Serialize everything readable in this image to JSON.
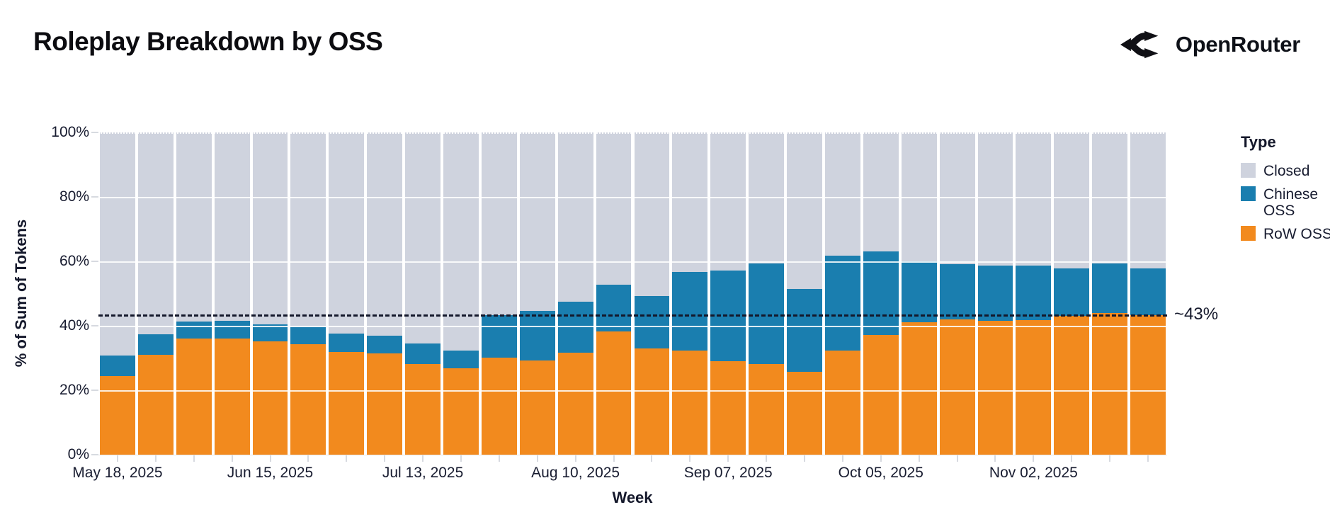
{
  "header": {
    "title": "Roleplay Breakdown by OSS",
    "brand": {
      "name": "OpenRouter",
      "logo_icon": "openrouter-logo-icon"
    }
  },
  "chart_data": {
    "type": "bar",
    "stacked": true,
    "normalized_percent": true,
    "title": "Roleplay Breakdown by OSS",
    "xlabel": "Week",
    "ylabel": "% of Sum of Tokens",
    "ylim": [
      0,
      100
    ],
    "ytick_values": [
      0,
      20,
      40,
      60,
      80,
      100
    ],
    "ytick_labels": [
      "0%",
      "20%",
      "40%",
      "60%",
      "80%",
      "100%"
    ],
    "xtick_labels_shown": [
      "May 18, 2025",
      "Jun 15, 2025",
      "Jul 13, 2025",
      "Aug 10, 2025",
      "Sep 07, 2025",
      "Oct 05, 2025",
      "Nov 02, 2025"
    ],
    "categories": [
      "May 18, 2025",
      "May 25, 2025",
      "Jun 01, 2025",
      "Jun 08, 2025",
      "Jun 15, 2025",
      "Jun 22, 2025",
      "Jun 29, 2025",
      "Jul 06, 2025",
      "Jul 13, 2025",
      "Jul 20, 2025",
      "Jul 27, 2025",
      "Aug 03, 2025",
      "Aug 10, 2025",
      "Aug 17, 2025",
      "Aug 24, 2025",
      "Aug 31, 2025",
      "Sep 07, 2025",
      "Sep 14, 2025",
      "Sep 21, 2025",
      "Sep 28, 2025",
      "Oct 05, 2025",
      "Oct 12, 2025",
      "Oct 19, 2025",
      "Oct 26, 2025",
      "Nov 02, 2025",
      "Nov 09, 2025",
      "Nov 16, 2025",
      "Nov 23, 2025"
    ],
    "series": [
      {
        "name": "Closed",
        "color": "#CFD3DE",
        "values": [
          69.2,
          62.7,
          58.7,
          58.5,
          59.6,
          60.4,
          62.4,
          63.0,
          65.4,
          67.6,
          56.6,
          55.4,
          52.5,
          47.2,
          50.7,
          43.4,
          42.8,
          40.7,
          48.6,
          38.2,
          36.9,
          40.0,
          40.9,
          41.4,
          41.3,
          42.3,
          40.6,
          42.3
        ]
      },
      {
        "name": "Chinese OSS",
        "color": "#1A7EAF",
        "values": [
          6.4,
          6.3,
          5.3,
          5.4,
          5.3,
          5.3,
          5.7,
          5.6,
          6.4,
          5.6,
          13.2,
          15.4,
          15.8,
          14.5,
          16.4,
          24.2,
          28.2,
          31.1,
          25.6,
          29.4,
          25.9,
          18.8,
          17.1,
          17.1,
          16.9,
          14.6,
          15.4,
          14.4
        ]
      },
      {
        "name": "RoW OSS",
        "color": "#F28A1E",
        "values": [
          24.4,
          31.0,
          36.0,
          36.1,
          35.1,
          34.3,
          31.9,
          31.4,
          28.2,
          26.8,
          30.2,
          29.2,
          31.7,
          38.3,
          32.9,
          32.4,
          29.0,
          28.2,
          25.8,
          32.4,
          37.2,
          41.2,
          42.0,
          41.5,
          41.8,
          43.1,
          44.0,
          43.3
        ]
      }
    ],
    "stack_order_bottom_to_top": [
      "RoW OSS",
      "Chinese OSS",
      "Closed"
    ],
    "reference_line": {
      "value": 43.5,
      "label": "~43%"
    },
    "legend": {
      "title": "Type",
      "position": "right"
    },
    "grid": "horizontal-white-over-bars"
  }
}
